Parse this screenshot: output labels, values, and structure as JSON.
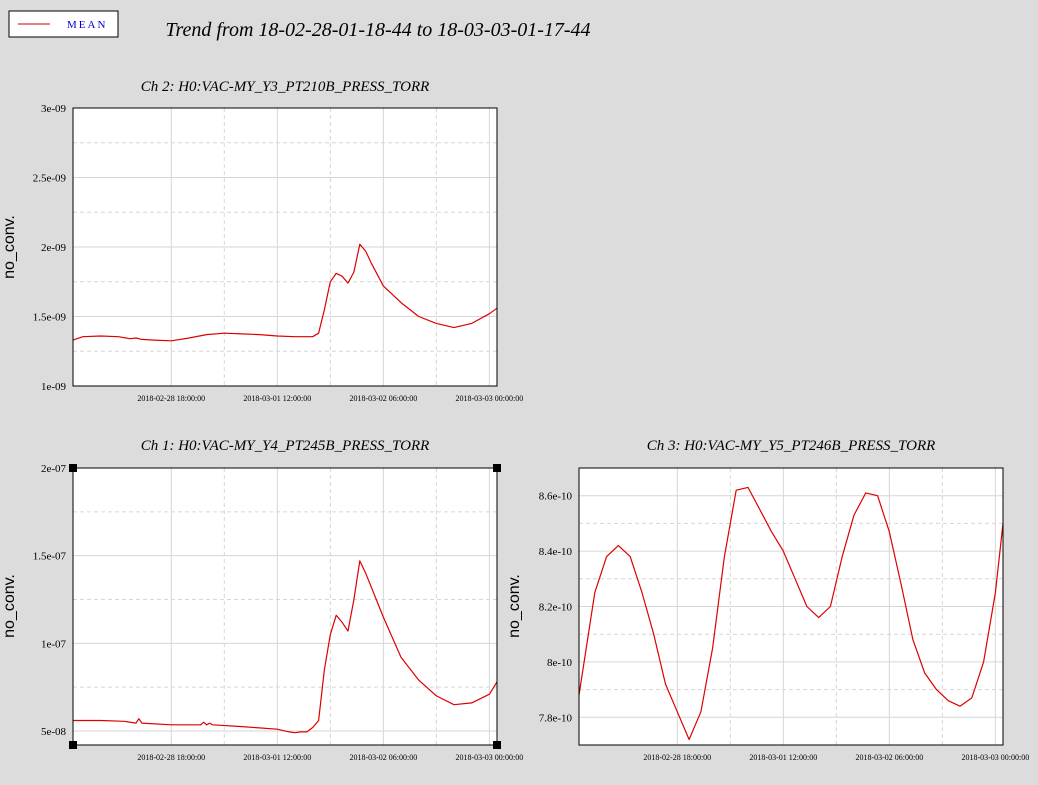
{
  "figure": {
    "title": "Trend from 18-02-28-01-18-44 to 18-03-03-01-17-44",
    "legend": {
      "label": "MEAN",
      "color": "#cc0000",
      "text_color": "#0000cc"
    },
    "background": "#dcdcdc",
    "plot_background": "#ffffff",
    "grid_color": "#d6d6d6",
    "series_color": "#dd0000"
  },
  "chart_data": [
    {
      "type": "line",
      "title": "Ch 2: H0:VAC-MY_Y3_PT210B_PRESS_TORR",
      "ylabel": "no_conv.",
      "xlabel": "",
      "y_scale": "linear",
      "ylim": [
        1e-09,
        3e-09
      ],
      "yticks": [
        1e-09,
        1.5e-09,
        2e-09,
        2.5e-09,
        3e-09
      ],
      "ytick_labels": [
        "1e-09",
        "1.5e-09",
        "2e-09",
        "2.5e-09",
        "3e-09"
      ],
      "xlim": [
        "2018-02-28 01:18:44",
        "2018-03-03 01:17:44"
      ],
      "xticks": [
        "2018-02-28 18:00:00",
        "2018-03-01 12:00:00",
        "2018-03-02 06:00:00",
        "2018-03-03 00:00:00"
      ],
      "xtick_labels": [
        "2018-02-28 18:00:00",
        "2018-03-01 12:00:00",
        "2018-03-02 06:00:00",
        "2018-03-03 00:00:00"
      ],
      "grid": true,
      "corner_markers": false,
      "series": [
        {
          "name": "MEAN",
          "x": [
            "2018-02-28 01:18:44",
            "2018-02-28 03:00",
            "2018-02-28 06:00",
            "2018-02-28 09:00",
            "2018-02-28 11:00",
            "2018-02-28 12:00",
            "2018-02-28 13:00",
            "2018-02-28 15:00",
            "2018-02-28 18:00",
            "2018-02-28 21:00",
            "2018-03-01 00:00",
            "2018-03-01 03:00",
            "2018-03-01 06:00",
            "2018-03-01 09:00",
            "2018-03-01 12:00",
            "2018-03-01 15:00",
            "2018-03-01 18:00",
            "2018-03-01 19:00",
            "2018-03-01 20:00",
            "2018-03-01 21:00",
            "2018-03-01 22:00",
            "2018-03-01 23:00",
            "2018-03-02 00:00",
            "2018-03-02 01:00",
            "2018-03-02 02:00",
            "2018-03-02 03:00",
            "2018-03-02 04:00",
            "2018-03-02 06:00",
            "2018-03-02 09:00",
            "2018-03-02 12:00",
            "2018-03-02 15:00",
            "2018-03-02 18:00",
            "2018-03-02 21:00",
            "2018-03-03 00:00",
            "2018-03-03 01:17:44"
          ],
          "y": [
            1.33e-09,
            1.355e-09,
            1.36e-09,
            1.355e-09,
            1.34e-09,
            1.345e-09,
            1.335e-09,
            1.33e-09,
            1.325e-09,
            1.345e-09,
            1.37e-09,
            1.38e-09,
            1.375e-09,
            1.37e-09,
            1.36e-09,
            1.355e-09,
            1.355e-09,
            1.38e-09,
            1.55e-09,
            1.75e-09,
            1.81e-09,
            1.79e-09,
            1.74e-09,
            1.82e-09,
            2.02e-09,
            1.97e-09,
            1.88e-09,
            1.72e-09,
            1.6e-09,
            1.5e-09,
            1.45e-09,
            1.42e-09,
            1.45e-09,
            1.52e-09,
            1.56e-09
          ]
        }
      ]
    },
    {
      "type": "line",
      "title": "Ch 1: H0:VAC-MY_Y4_PT245B_PRESS_TORR",
      "ylabel": "no_conv.",
      "xlabel": "",
      "y_scale": "linear",
      "ylim": [
        4.2e-08,
        2e-07
      ],
      "yticks": [
        5e-08,
        1e-07,
        1.5e-07,
        2e-07
      ],
      "ytick_labels": [
        "5e-08",
        "1e-07",
        "1.5e-07",
        "2e-07"
      ],
      "xlim": [
        "2018-02-28 01:18:44",
        "2018-03-03 01:17:44"
      ],
      "xticks": [
        "2018-02-28 18:00:00",
        "2018-03-01 12:00:00",
        "2018-03-02 06:00:00",
        "2018-03-03 00:00:00"
      ],
      "xtick_labels": [
        "2018-02-28 18:00:00",
        "2018-03-01 12:00:00",
        "2018-03-02 06:00:00",
        "2018-03-03 00:00:00"
      ],
      "grid": true,
      "corner_markers": true,
      "series": [
        {
          "name": "MEAN",
          "x": [
            "2018-02-28 01:18:44",
            "2018-02-28 06:00",
            "2018-02-28 10:00",
            "2018-02-28 12:00",
            "2018-02-28 12:30",
            "2018-02-28 13:00",
            "2018-02-28 18:00",
            "2018-02-28 23:00",
            "2018-02-28 23:30",
            "2018-03-01 00:00",
            "2018-03-01 00:30",
            "2018-03-01 01:00",
            "2018-03-01 06:00",
            "2018-03-01 12:00",
            "2018-03-01 14:00",
            "2018-03-01 15:00",
            "2018-03-01 16:00",
            "2018-03-01 17:00",
            "2018-03-01 18:00",
            "2018-03-01 19:00",
            "2018-03-01 20:00",
            "2018-03-01 21:00",
            "2018-03-01 22:00",
            "2018-03-01 23:00",
            "2018-03-02 00:00",
            "2018-03-02 01:00",
            "2018-03-02 02:00",
            "2018-03-02 03:00",
            "2018-03-02 06:00",
            "2018-03-02 09:00",
            "2018-03-02 12:00",
            "2018-03-02 15:00",
            "2018-03-02 18:00",
            "2018-03-02 21:00",
            "2018-03-03 00:00",
            "2018-03-03 01:17:44"
          ],
          "y": [
            5.6e-08,
            5.6e-08,
            5.55e-08,
            5.45e-08,
            5.7e-08,
            5.45e-08,
            5.35e-08,
            5.35e-08,
            5.5e-08,
            5.35e-08,
            5.45e-08,
            5.35e-08,
            5.25e-08,
            5.1e-08,
            4.95e-08,
            4.9e-08,
            4.95e-08,
            4.95e-08,
            5.2e-08,
            5.6e-08,
            8.5e-08,
            1.05e-07,
            1.16e-07,
            1.12e-07,
            1.07e-07,
            1.25e-07,
            1.47e-07,
            1.4e-07,
            1.15e-07,
            9.2e-08,
            7.9e-08,
            7e-08,
            6.5e-08,
            6.6e-08,
            7.1e-08,
            7.8e-08
          ]
        }
      ]
    },
    {
      "type": "line",
      "title": "Ch 3: H0:VAC-MY_Y5_PT246B_PRESS_TORR",
      "ylabel": "no_conv.",
      "xlabel": "",
      "y_scale": "linear",
      "ylim": [
        7.7e-10,
        8.7e-10
      ],
      "yticks": [
        7.8e-10,
        8e-10,
        8.2e-10,
        8.4e-10,
        8.6e-10
      ],
      "ytick_labels": [
        "7.8e-10",
        "8e-10",
        "8.2e-10",
        "8.4e-10",
        "8.6e-10"
      ],
      "xlim": [
        "2018-02-28 01:18:44",
        "2018-03-03 01:17:44"
      ],
      "xticks": [
        "2018-02-28 18:00:00",
        "2018-03-01 12:00:00",
        "2018-03-02 06:00:00",
        "2018-03-03 00:00:00"
      ],
      "xtick_labels": [
        "2018-02-28 18:00:00",
        "2018-03-01 12:00:00",
        "2018-03-02 06:00:00",
        "2018-03-03 00:00:00"
      ],
      "grid": true,
      "corner_markers": false,
      "series": [
        {
          "name": "MEAN",
          "x": [
            "2018-02-28 01:18:44",
            "2018-02-28 04:00",
            "2018-02-28 06:00",
            "2018-02-28 08:00",
            "2018-02-28 10:00",
            "2018-02-28 12:00",
            "2018-02-28 14:00",
            "2018-02-28 16:00",
            "2018-02-28 18:00",
            "2018-02-28 20:00",
            "2018-02-28 22:00",
            "2018-03-01 00:00",
            "2018-03-01 02:00",
            "2018-03-01 04:00",
            "2018-03-01 06:00",
            "2018-03-01 08:00",
            "2018-03-01 10:00",
            "2018-03-01 12:00",
            "2018-03-01 14:00",
            "2018-03-01 16:00",
            "2018-03-01 18:00",
            "2018-03-01 20:00",
            "2018-03-01 22:00",
            "2018-03-02 00:00",
            "2018-03-02 02:00",
            "2018-03-02 04:00",
            "2018-03-02 06:00",
            "2018-03-02 08:00",
            "2018-03-02 10:00",
            "2018-03-02 12:00",
            "2018-03-02 14:00",
            "2018-03-02 16:00",
            "2018-03-02 18:00",
            "2018-03-02 20:00",
            "2018-03-02 22:00",
            "2018-03-03 00:00",
            "2018-03-03 01:17:44"
          ],
          "y": [
            7.88e-10,
            8.25e-10,
            8.38e-10,
            8.42e-10,
            8.38e-10,
            8.25e-10,
            8.1e-10,
            7.92e-10,
            7.82e-10,
            7.72e-10,
            7.82e-10,
            8.05e-10,
            8.38e-10,
            8.62e-10,
            8.63e-10,
            8.55e-10,
            8.47e-10,
            8.4e-10,
            8.3e-10,
            8.2e-10,
            8.16e-10,
            8.2e-10,
            8.38e-10,
            8.53e-10,
            8.61e-10,
            8.6e-10,
            8.47e-10,
            8.28e-10,
            8.08e-10,
            7.96e-10,
            7.9e-10,
            7.86e-10,
            7.84e-10,
            7.87e-10,
            8e-10,
            8.25e-10,
            8.5e-10
          ]
        }
      ]
    }
  ]
}
